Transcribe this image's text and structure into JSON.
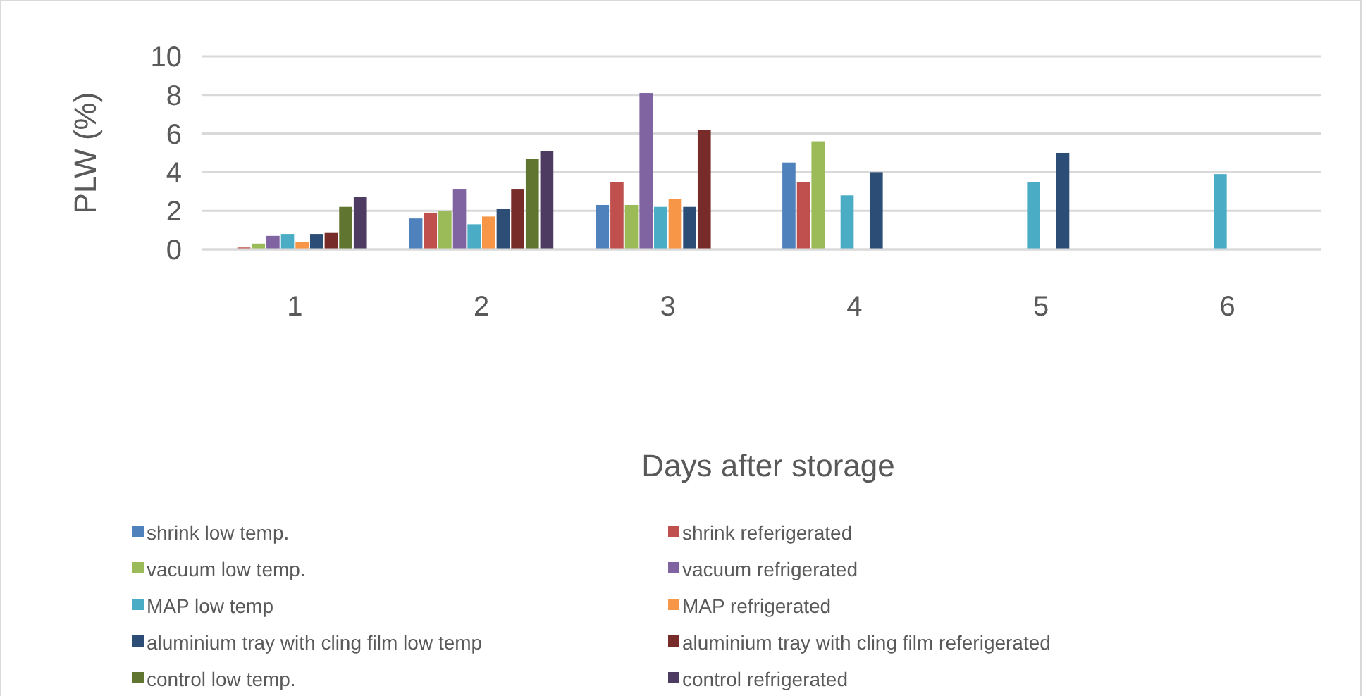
{
  "chart_data": {
    "type": "bar",
    "xlabel": "Days after storage",
    "ylabel": "PLW (%)",
    "categories": [
      "1",
      "2",
      "3",
      "4",
      "5",
      "6"
    ],
    "ylim": [
      0,
      10
    ],
    "yticks": [
      0,
      2,
      4,
      6,
      8,
      10
    ],
    "grid": "y",
    "legend": "bottom",
    "series": [
      {
        "name": "shrink low temp.",
        "color": "#4f81bd",
        "values": [
          0,
          1.6,
          2.3,
          4.5,
          null,
          null
        ]
      },
      {
        "name": "shrink referigerated",
        "color": "#c0504d",
        "values": [
          0.1,
          1.9,
          3.5,
          3.5,
          null,
          null
        ]
      },
      {
        "name": "vacuum low temp.",
        "color": "#9bbb59",
        "values": [
          0.3,
          2.0,
          2.3,
          5.6,
          null,
          null
        ]
      },
      {
        "name": "vacuum refrigerated",
        "color": "#8064a2",
        "values": [
          0.7,
          3.1,
          8.1,
          null,
          null,
          null
        ]
      },
      {
        "name": "MAP low temp",
        "color": "#4bacc6",
        "values": [
          0.8,
          1.3,
          2.2,
          2.8,
          3.5,
          3.9
        ]
      },
      {
        "name": "MAP refrigerated",
        "color": "#f79646",
        "values": [
          0.4,
          1.7,
          2.6,
          null,
          null,
          null
        ]
      },
      {
        "name": "aluminium tray with cling film low temp",
        "color": "#2c4d75",
        "values": [
          0.8,
          2.1,
          2.2,
          4.0,
          5.0,
          null
        ]
      },
      {
        "name": "aluminium tray with cling film referigerated",
        "color": "#772c2a",
        "values": [
          0.85,
          3.1,
          6.2,
          null,
          null,
          null
        ]
      },
      {
        "name": "control low temp.",
        "color": "#5f7530",
        "values": [
          2.2,
          4.7,
          null,
          null,
          null,
          null
        ]
      },
      {
        "name": "control refrigerated",
        "color": "#4d3b62",
        "values": [
          2.7,
          5.1,
          null,
          null,
          null,
          null
        ]
      }
    ]
  }
}
